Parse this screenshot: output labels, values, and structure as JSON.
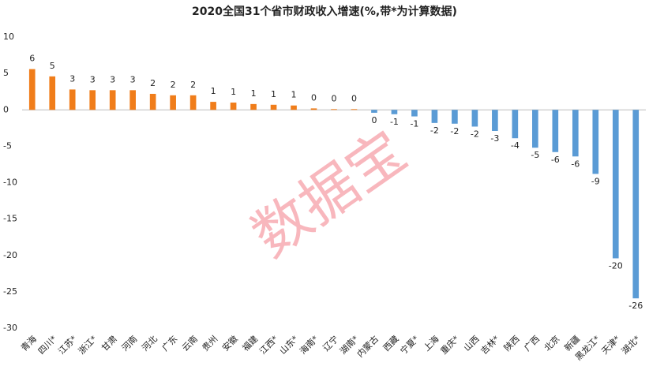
{
  "chart_data": {
    "type": "bar",
    "title": "2020全国31个省市财政收入增速(%,带*为计算数据)",
    "watermark": "数据宝",
    "categories": [
      "青海",
      "四川*",
      "江苏*",
      "浙江*",
      "甘肃",
      "河南",
      "河北",
      "广东",
      "云南",
      "贵州",
      "安徽",
      "福建",
      "江西*",
      "山东*",
      "海南*",
      "辽宁",
      "湖南*",
      "内蒙古",
      "西藏",
      "宁夏*",
      "上海",
      "重庆*",
      "山西",
      "吉林*",
      "陕西",
      "广西",
      "北京",
      "新疆",
      "黑龙江*",
      "天津*",
      "湖北*"
    ],
    "values": [
      5.6,
      4.6,
      2.8,
      2.7,
      2.7,
      2.7,
      2.2,
      2.0,
      2.0,
      1.1,
      1.0,
      0.8,
      0.7,
      0.6,
      0.2,
      0.1,
      0.1,
      -0.4,
      -0.6,
      -0.9,
      -1.8,
      -1.9,
      -2.3,
      -2.9,
      -3.9,
      -5.2,
      -5.8,
      -6.4,
      -8.8,
      -20.4,
      -25.9
    ],
    "value_labels": [
      "6",
      "5",
      "3",
      "3",
      "3",
      "3",
      "2",
      "2",
      "2",
      "1",
      "1",
      "1",
      "1",
      "1",
      "0",
      "0",
      "0",
      "0",
      "-1",
      "-1",
      "-2",
      "-2",
      "-2",
      "-3",
      "-4",
      "-5",
      "-6",
      "-6",
      "-9",
      "-20",
      "-26"
    ],
    "color": "#f07d1a",
    "negative_color": "#5a9bd5",
    "ylim": [
      -30,
      10
    ],
    "yticks": [
      -30,
      -25,
      -20,
      -15,
      -10,
      -5,
      0,
      5,
      10
    ],
    "grid": false
  }
}
